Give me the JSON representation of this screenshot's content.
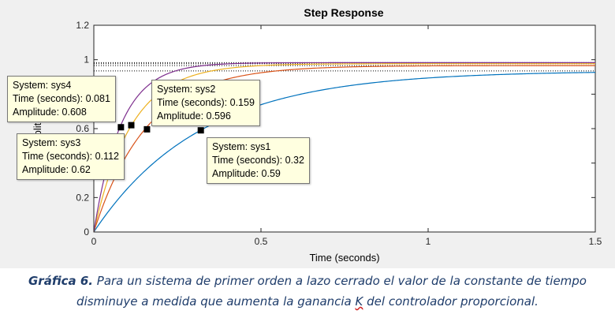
{
  "chart_data": {
    "type": "line",
    "title": "Step Response",
    "xlabel": "Time (seconds)",
    "ylabel": "Amplitude",
    "xlim": [
      0,
      1.5
    ],
    "ylim": [
      0,
      1.2
    ],
    "xticks": [
      "0",
      "0.5",
      "1",
      "1.5"
    ],
    "yticks": [
      "0",
      "0.2",
      "0.4",
      "0.6",
      "0.8",
      "1",
      "1.2"
    ],
    "grid": false,
    "series": [
      {
        "name": "sys1",
        "color": "#0072bd",
        "final_value": 0.935,
        "time_constant": 0.32
      },
      {
        "name": "sys2",
        "color": "#d95319",
        "final_value": 0.966,
        "time_constant": 0.159
      },
      {
        "name": "sys3",
        "color": "#edb120",
        "final_value": 0.977,
        "time_constant": 0.112
      },
      {
        "name": "sys4",
        "color": "#7e2f8e",
        "final_value": 0.983,
        "time_constant": 0.081
      }
    ],
    "datatips": [
      {
        "system_label": "System: sys1",
        "time_label": "Time (seconds): 0.32",
        "amp_label": "Amplitude: 0.59",
        "x": 0.32,
        "y": 0.59
      },
      {
        "system_label": "System: sys2",
        "time_label": "Time (seconds): 0.159",
        "amp_label": "Amplitude: 0.596",
        "x": 0.159,
        "y": 0.596
      },
      {
        "system_label": "System: sys3",
        "time_label": "Time (seconds): 0.112",
        "amp_label": "Amplitude: 0.62",
        "x": 0.112,
        "y": 0.62
      },
      {
        "system_label": "System: sys4",
        "time_label": "Time (seconds): 0.081",
        "amp_label": "Amplitude: 0.608",
        "x": 0.081,
        "y": 0.608
      }
    ]
  },
  "caption": {
    "lead": "Gráfica 6.",
    "before_k": " Para un sistema de primer orden a lazo cerrado el valor de la constante de tiempo disminuye a medida que aumenta la ganancia ",
    "k": "K",
    "after_k": " del controlador proporcional."
  }
}
